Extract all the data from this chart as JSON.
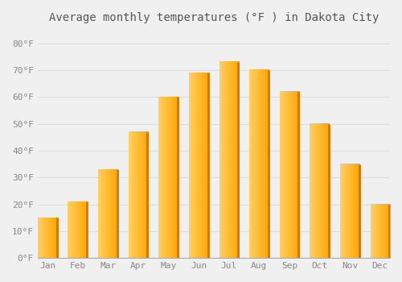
{
  "title": "Average monthly temperatures (°F ) in Dakota City",
  "months": [
    "Jan",
    "Feb",
    "Mar",
    "Apr",
    "May",
    "Jun",
    "Jul",
    "Aug",
    "Sep",
    "Oct",
    "Nov",
    "Dec"
  ],
  "values": [
    15,
    21,
    33,
    47,
    60,
    69,
    73,
    70,
    62,
    50,
    35,
    20
  ],
  "bar_color_left": "#FFB300",
  "bar_color_right": "#FFCC55",
  "bar_color_dark": "#E08000",
  "yticks": [
    0,
    10,
    20,
    30,
    40,
    50,
    60,
    70,
    80
  ],
  "ytick_labels": [
    "0°F",
    "10°F",
    "20°F",
    "30°F",
    "40°F",
    "50°F",
    "60°F",
    "70°F",
    "80°F"
  ],
  "ylim": [
    0,
    85
  ],
  "background_color": "#F0F0F0",
  "grid_color": "#DDDDDD",
  "title_fontsize": 10,
  "tick_fontsize": 8,
  "font_family": "monospace"
}
